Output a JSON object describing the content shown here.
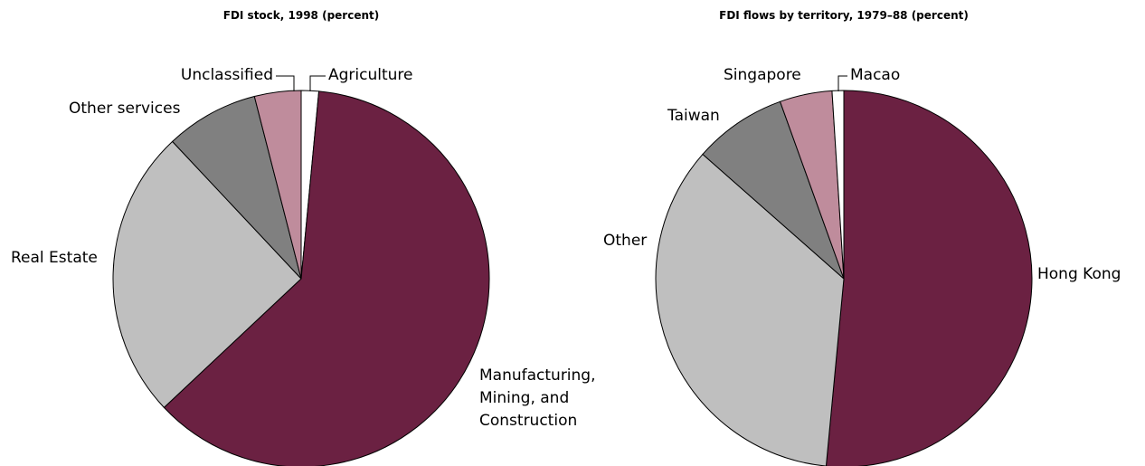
{
  "chart_data": [
    {
      "type": "pie",
      "title": "FDI stock, 1998 (percent)",
      "categories": [
        "Agriculture",
        "Manufacturing, Mining, and Construction",
        "Real Estate",
        "Other services",
        "Unclassified"
      ],
      "values": [
        1.5,
        61.5,
        25,
        8,
        4
      ],
      "colors": [
        "#ffffff",
        "#6b2142",
        "#bfbfbf",
        "#808080",
        "#bf8c9c"
      ]
    },
    {
      "type": "pie",
      "title": "FDI flows by territory, 1979–88 (percent)",
      "categories": [
        "Hong Kong",
        "Other",
        "Taiwan",
        "Singapore",
        "Macao"
      ],
      "values": [
        51.5,
        35,
        8,
        4.5,
        1
      ],
      "colors": [
        "#6b2142",
        "#bfbfbf",
        "#808080",
        "#bf8c9c",
        "#ffffff"
      ]
    }
  ]
}
